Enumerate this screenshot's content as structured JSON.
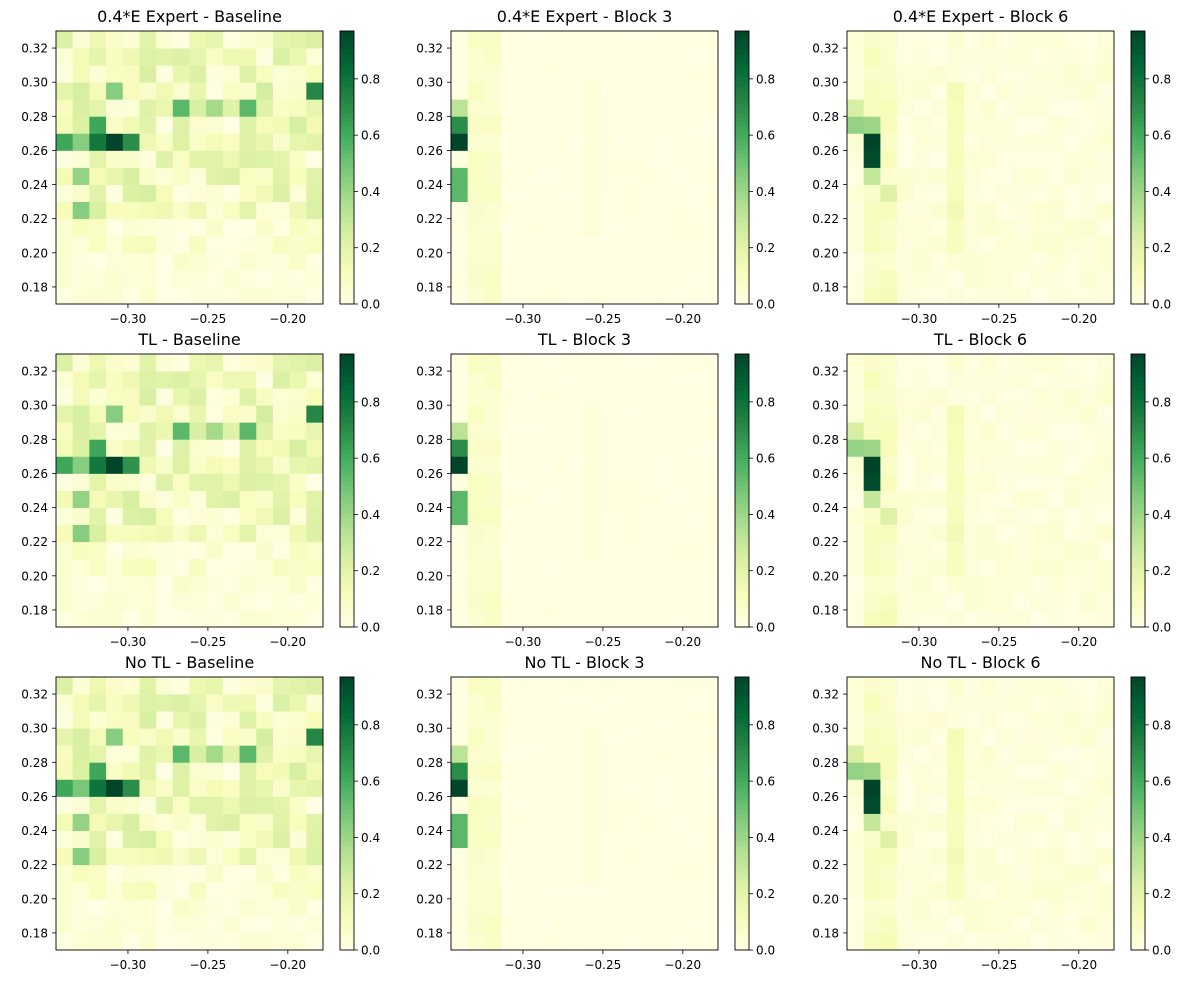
{
  "figure": {
    "background": "#ffffff"
  },
  "colormap": {
    "name": "Greens",
    "stops": [
      "#ffffe5",
      "#f7fcb9",
      "#d9f0a3",
      "#addd8e",
      "#78c679",
      "#41ab5d",
      "#238443",
      "#006837",
      "#004529"
    ]
  },
  "chart_data": [
    {
      "type": "heatmap",
      "title": "0.4*E Expert - Baseline",
      "xlim": [
        -0.345,
        -0.178
      ],
      "ylim": [
        0.17,
        0.33
      ],
      "x_ticks": [
        -0.3,
        -0.25,
        -0.2
      ],
      "y_ticks": [
        0.18,
        0.2,
        0.22,
        0.24,
        0.26,
        0.28,
        0.3,
        0.32
      ],
      "x_tick_labels": [
        "−0.30",
        "−0.25",
        "−0.20"
      ],
      "y_tick_labels": [
        "0.18",
        "0.20",
        "0.22",
        "0.24",
        "0.26",
        "0.28",
        "0.30",
        "0.32"
      ],
      "colorbar": {
        "range": [
          0.0,
          0.97
        ],
        "ticks": [
          0.0,
          0.2,
          0.4,
          0.6,
          0.8
        ],
        "tick_labels": [
          "0.0",
          "0.2",
          "0.4",
          "0.6",
          "0.8"
        ]
      },
      "grid": false,
      "pattern": "baseline",
      "highlight_cells": [
        {
          "x": -0.31,
          "y": 0.26,
          "value": 0.97
        },
        {
          "x": -0.318,
          "y": 0.26,
          "value": 0.78
        },
        {
          "x": -0.318,
          "y": 0.27,
          "value": 0.62
        },
        {
          "x": -0.342,
          "y": 0.265,
          "value": 0.62
        },
        {
          "x": -0.302,
          "y": 0.265,
          "value": 0.7
        },
        {
          "x": -0.186,
          "y": 0.3,
          "value": 0.72
        },
        {
          "x": -0.326,
          "y": 0.265,
          "value": 0.45
        },
        {
          "x": -0.334,
          "y": 0.25,
          "value": 0.42
        },
        {
          "x": -0.27,
          "y": 0.29,
          "value": 0.55
        },
        {
          "x": -0.222,
          "y": 0.29,
          "value": 0.55
        },
        {
          "x": -0.31,
          "y": 0.3,
          "value": 0.45
        },
        {
          "x": -0.326,
          "y": 0.225,
          "value": 0.45
        },
        {
          "x": -0.23,
          "y": 0.28,
          "value": 0.35
        },
        {
          "x": -0.246,
          "y": 0.29,
          "value": 0.38
        }
      ]
    },
    {
      "type": "heatmap",
      "title": "0.4*E Expert - Block 3",
      "xlim": [
        -0.345,
        -0.178
      ],
      "ylim": [
        0.17,
        0.33
      ],
      "x_ticks": [
        -0.3,
        -0.25,
        -0.2
      ],
      "y_ticks": [
        0.18,
        0.2,
        0.22,
        0.24,
        0.26,
        0.28,
        0.3,
        0.32
      ],
      "x_tick_labels": [
        "−0.30",
        "−0.25",
        "−0.20"
      ],
      "y_tick_labels": [
        "0.18",
        "0.20",
        "0.22",
        "0.24",
        "0.26",
        "0.28",
        "0.30",
        "0.32"
      ],
      "colorbar": {
        "range": [
          0.0,
          0.97
        ],
        "ticks": [
          0.0,
          0.2,
          0.4,
          0.6,
          0.8
        ],
        "tick_labels": [
          "0.0",
          "0.2",
          "0.4",
          "0.6",
          "0.8"
        ]
      },
      "grid": false,
      "pattern": "block3",
      "highlight_cells": [
        {
          "x": -0.338,
          "y": 0.26,
          "value": 0.97
        },
        {
          "x": -0.338,
          "y": 0.27,
          "value": 0.7
        },
        {
          "x": -0.338,
          "y": 0.25,
          "value": 0.55
        },
        {
          "x": -0.338,
          "y": 0.24,
          "value": 0.55
        },
        {
          "x": -0.338,
          "y": 0.28,
          "value": 0.32
        },
        {
          "x": -0.338,
          "y": 0.23,
          "value": 0.25
        }
      ]
    },
    {
      "type": "heatmap",
      "title": "0.4*E Expert - Block 6",
      "xlim": [
        -0.345,
        -0.178
      ],
      "ylim": [
        0.17,
        0.33
      ],
      "x_ticks": [
        -0.3,
        -0.25,
        -0.2
      ],
      "y_ticks": [
        0.18,
        0.2,
        0.22,
        0.24,
        0.26,
        0.28,
        0.3,
        0.32
      ],
      "x_tick_labels": [
        "−0.30",
        "−0.25",
        "−0.20"
      ],
      "y_tick_labels": [
        "0.18",
        "0.20",
        "0.22",
        "0.24",
        "0.26",
        "0.28",
        "0.30",
        "0.32"
      ],
      "colorbar": {
        "range": [
          0.0,
          0.97
        ],
        "ticks": [
          0.0,
          0.2,
          0.4,
          0.6,
          0.8
        ],
        "tick_labels": [
          "0.0",
          "0.2",
          "0.4",
          "0.6",
          "0.8"
        ]
      },
      "grid": false,
      "pattern": "block6",
      "highlight_cells": [
        {
          "x": -0.334,
          "y": 0.265,
          "value": 0.97
        },
        {
          "x": -0.334,
          "y": 0.255,
          "value": 0.95
        },
        {
          "x": -0.342,
          "y": 0.275,
          "value": 0.42
        },
        {
          "x": -0.334,
          "y": 0.275,
          "value": 0.4
        },
        {
          "x": -0.334,
          "y": 0.245,
          "value": 0.3
        },
        {
          "x": -0.342,
          "y": 0.285,
          "value": 0.25
        },
        {
          "x": -0.318,
          "y": 0.24,
          "value": 0.22
        }
      ]
    },
    {
      "type": "heatmap",
      "title": "TL - Baseline",
      "xlim": [
        -0.345,
        -0.178
      ],
      "ylim": [
        0.17,
        0.33
      ],
      "x_ticks": [
        -0.3,
        -0.25,
        -0.2
      ],
      "y_ticks": [
        0.18,
        0.2,
        0.22,
        0.24,
        0.26,
        0.28,
        0.3,
        0.32
      ],
      "x_tick_labels": [
        "−0.30",
        "−0.25",
        "−0.20"
      ],
      "y_tick_labels": [
        "0.18",
        "0.20",
        "0.22",
        "0.24",
        "0.26",
        "0.28",
        "0.30",
        "0.32"
      ],
      "colorbar": {
        "range": [
          0.0,
          0.97
        ],
        "ticks": [
          0.0,
          0.2,
          0.4,
          0.6,
          0.8
        ],
        "tick_labels": [
          "0.0",
          "0.2",
          "0.4",
          "0.6",
          "0.8"
        ]
      },
      "grid": false,
      "pattern": "baseline",
      "highlight_cells": [
        {
          "x": -0.31,
          "y": 0.26,
          "value": 0.97
        },
        {
          "x": -0.318,
          "y": 0.26,
          "value": 0.78
        },
        {
          "x": -0.318,
          "y": 0.27,
          "value": 0.62
        },
        {
          "x": -0.342,
          "y": 0.265,
          "value": 0.62
        },
        {
          "x": -0.302,
          "y": 0.265,
          "value": 0.68
        },
        {
          "x": -0.186,
          "y": 0.3,
          "value": 0.72
        },
        {
          "x": -0.326,
          "y": 0.265,
          "value": 0.45
        },
        {
          "x": -0.334,
          "y": 0.25,
          "value": 0.42
        },
        {
          "x": -0.27,
          "y": 0.29,
          "value": 0.55
        },
        {
          "x": -0.222,
          "y": 0.29,
          "value": 0.55
        },
        {
          "x": -0.31,
          "y": 0.3,
          "value": 0.45
        },
        {
          "x": -0.326,
          "y": 0.225,
          "value": 0.45
        },
        {
          "x": -0.23,
          "y": 0.28,
          "value": 0.35
        },
        {
          "x": -0.246,
          "y": 0.29,
          "value": 0.38
        }
      ]
    },
    {
      "type": "heatmap",
      "title": "TL - Block 3",
      "xlim": [
        -0.345,
        -0.178
      ],
      "ylim": [
        0.17,
        0.33
      ],
      "x_ticks": [
        -0.3,
        -0.25,
        -0.2
      ],
      "y_ticks": [
        0.18,
        0.2,
        0.22,
        0.24,
        0.26,
        0.28,
        0.3,
        0.32
      ],
      "x_tick_labels": [
        "−0.30",
        "−0.25",
        "−0.20"
      ],
      "y_tick_labels": [
        "0.18",
        "0.20",
        "0.22",
        "0.24",
        "0.26",
        "0.28",
        "0.30",
        "0.32"
      ],
      "colorbar": {
        "range": [
          0.0,
          0.97
        ],
        "ticks": [
          0.0,
          0.2,
          0.4,
          0.6,
          0.8
        ],
        "tick_labels": [
          "0.0",
          "0.2",
          "0.4",
          "0.6",
          "0.8"
        ]
      },
      "grid": false,
      "pattern": "block3",
      "highlight_cells": [
        {
          "x": -0.338,
          "y": 0.26,
          "value": 0.97
        },
        {
          "x": -0.338,
          "y": 0.27,
          "value": 0.7
        },
        {
          "x": -0.338,
          "y": 0.25,
          "value": 0.55
        },
        {
          "x": -0.338,
          "y": 0.24,
          "value": 0.55
        },
        {
          "x": -0.338,
          "y": 0.28,
          "value": 0.32
        },
        {
          "x": -0.338,
          "y": 0.23,
          "value": 0.25
        }
      ]
    },
    {
      "type": "heatmap",
      "title": "TL - Block 6",
      "xlim": [
        -0.345,
        -0.178
      ],
      "ylim": [
        0.17,
        0.33
      ],
      "x_ticks": [
        -0.3,
        -0.25,
        -0.2
      ],
      "y_ticks": [
        0.18,
        0.2,
        0.22,
        0.24,
        0.26,
        0.28,
        0.3,
        0.32
      ],
      "x_tick_labels": [
        "−0.30",
        "−0.25",
        "−0.20"
      ],
      "y_tick_labels": [
        "0.18",
        "0.20",
        "0.22",
        "0.24",
        "0.26",
        "0.28",
        "0.30",
        "0.32"
      ],
      "colorbar": {
        "range": [
          0.0,
          0.97
        ],
        "ticks": [
          0.0,
          0.2,
          0.4,
          0.6,
          0.8
        ],
        "tick_labels": [
          "0.0",
          "0.2",
          "0.4",
          "0.6",
          "0.8"
        ]
      },
      "grid": false,
      "pattern": "block6",
      "highlight_cells": [
        {
          "x": -0.334,
          "y": 0.265,
          "value": 0.97
        },
        {
          "x": -0.334,
          "y": 0.255,
          "value": 0.95
        },
        {
          "x": -0.342,
          "y": 0.275,
          "value": 0.42
        },
        {
          "x": -0.334,
          "y": 0.275,
          "value": 0.4
        },
        {
          "x": -0.334,
          "y": 0.245,
          "value": 0.3
        },
        {
          "x": -0.342,
          "y": 0.285,
          "value": 0.25
        },
        {
          "x": -0.318,
          "y": 0.24,
          "value": 0.22
        }
      ]
    },
    {
      "type": "heatmap",
      "title": "No TL - Baseline",
      "xlim": [
        -0.345,
        -0.178
      ],
      "ylim": [
        0.17,
        0.33
      ],
      "x_ticks": [
        -0.3,
        -0.25,
        -0.2
      ],
      "y_ticks": [
        0.18,
        0.2,
        0.22,
        0.24,
        0.26,
        0.28,
        0.3,
        0.32
      ],
      "x_tick_labels": [
        "−0.30",
        "−0.25",
        "−0.20"
      ],
      "y_tick_labels": [
        "0.18",
        "0.20",
        "0.22",
        "0.24",
        "0.26",
        "0.28",
        "0.30",
        "0.32"
      ],
      "colorbar": {
        "range": [
          0.0,
          0.97
        ],
        "ticks": [
          0.0,
          0.2,
          0.4,
          0.6,
          0.8
        ],
        "tick_labels": [
          "0.0",
          "0.2",
          "0.4",
          "0.6",
          "0.8"
        ]
      },
      "grid": false,
      "pattern": "baseline",
      "highlight_cells": [
        {
          "x": -0.31,
          "y": 0.26,
          "value": 0.97
        },
        {
          "x": -0.318,
          "y": 0.26,
          "value": 0.8
        },
        {
          "x": -0.318,
          "y": 0.27,
          "value": 0.62
        },
        {
          "x": -0.342,
          "y": 0.265,
          "value": 0.62
        },
        {
          "x": -0.302,
          "y": 0.265,
          "value": 0.7
        },
        {
          "x": -0.186,
          "y": 0.3,
          "value": 0.72
        },
        {
          "x": -0.334,
          "y": 0.26,
          "value": 0.48
        },
        {
          "x": -0.334,
          "y": 0.25,
          "value": 0.42
        },
        {
          "x": -0.27,
          "y": 0.29,
          "value": 0.55
        },
        {
          "x": -0.222,
          "y": 0.29,
          "value": 0.55
        },
        {
          "x": -0.31,
          "y": 0.3,
          "value": 0.45
        },
        {
          "x": -0.326,
          "y": 0.225,
          "value": 0.45
        },
        {
          "x": -0.23,
          "y": 0.28,
          "value": 0.35
        },
        {
          "x": -0.246,
          "y": 0.29,
          "value": 0.38
        }
      ]
    },
    {
      "type": "heatmap",
      "title": "No TL - Block 3",
      "xlim": [
        -0.345,
        -0.178
      ],
      "ylim": [
        0.17,
        0.33
      ],
      "x_ticks": [
        -0.3,
        -0.25,
        -0.2
      ],
      "y_ticks": [
        0.18,
        0.2,
        0.22,
        0.24,
        0.26,
        0.28,
        0.3,
        0.32
      ],
      "x_tick_labels": [
        "−0.30",
        "−0.25",
        "−0.20"
      ],
      "y_tick_labels": [
        "0.18",
        "0.20",
        "0.22",
        "0.24",
        "0.26",
        "0.28",
        "0.30",
        "0.32"
      ],
      "colorbar": {
        "range": [
          0.0,
          0.97
        ],
        "ticks": [
          0.0,
          0.2,
          0.4,
          0.6,
          0.8
        ],
        "tick_labels": [
          "0.0",
          "0.2",
          "0.4",
          "0.6",
          "0.8"
        ]
      },
      "grid": false,
      "pattern": "block3",
      "highlight_cells": [
        {
          "x": -0.338,
          "y": 0.26,
          "value": 0.97
        },
        {
          "x": -0.338,
          "y": 0.27,
          "value": 0.7
        },
        {
          "x": -0.338,
          "y": 0.25,
          "value": 0.55
        },
        {
          "x": -0.338,
          "y": 0.24,
          "value": 0.55
        },
        {
          "x": -0.338,
          "y": 0.28,
          "value": 0.32
        },
        {
          "x": -0.338,
          "y": 0.23,
          "value": 0.25
        }
      ]
    },
    {
      "type": "heatmap",
      "title": "No TL - Block 6",
      "xlim": [
        -0.345,
        -0.178
      ],
      "ylim": [
        0.17,
        0.33
      ],
      "x_ticks": [
        -0.3,
        -0.25,
        -0.2
      ],
      "y_ticks": [
        0.18,
        0.2,
        0.22,
        0.24,
        0.26,
        0.28,
        0.3,
        0.32
      ],
      "x_tick_labels": [
        "−0.30",
        "−0.25",
        "−0.20"
      ],
      "y_tick_labels": [
        "0.18",
        "0.20",
        "0.22",
        "0.24",
        "0.26",
        "0.28",
        "0.30",
        "0.32"
      ],
      "colorbar": {
        "range": [
          0.0,
          0.97
        ],
        "ticks": [
          0.0,
          0.2,
          0.4,
          0.6,
          0.8
        ],
        "tick_labels": [
          "0.0",
          "0.2",
          "0.4",
          "0.6",
          "0.8"
        ]
      },
      "grid": false,
      "pattern": "block6",
      "highlight_cells": [
        {
          "x": -0.334,
          "y": 0.265,
          "value": 0.97
        },
        {
          "x": -0.334,
          "y": 0.255,
          "value": 0.95
        },
        {
          "x": -0.342,
          "y": 0.275,
          "value": 0.42
        },
        {
          "x": -0.334,
          "y": 0.275,
          "value": 0.4
        },
        {
          "x": -0.334,
          "y": 0.245,
          "value": 0.3
        },
        {
          "x": -0.342,
          "y": 0.285,
          "value": 0.25
        },
        {
          "x": -0.318,
          "y": 0.24,
          "value": 0.22
        }
      ]
    }
  ]
}
